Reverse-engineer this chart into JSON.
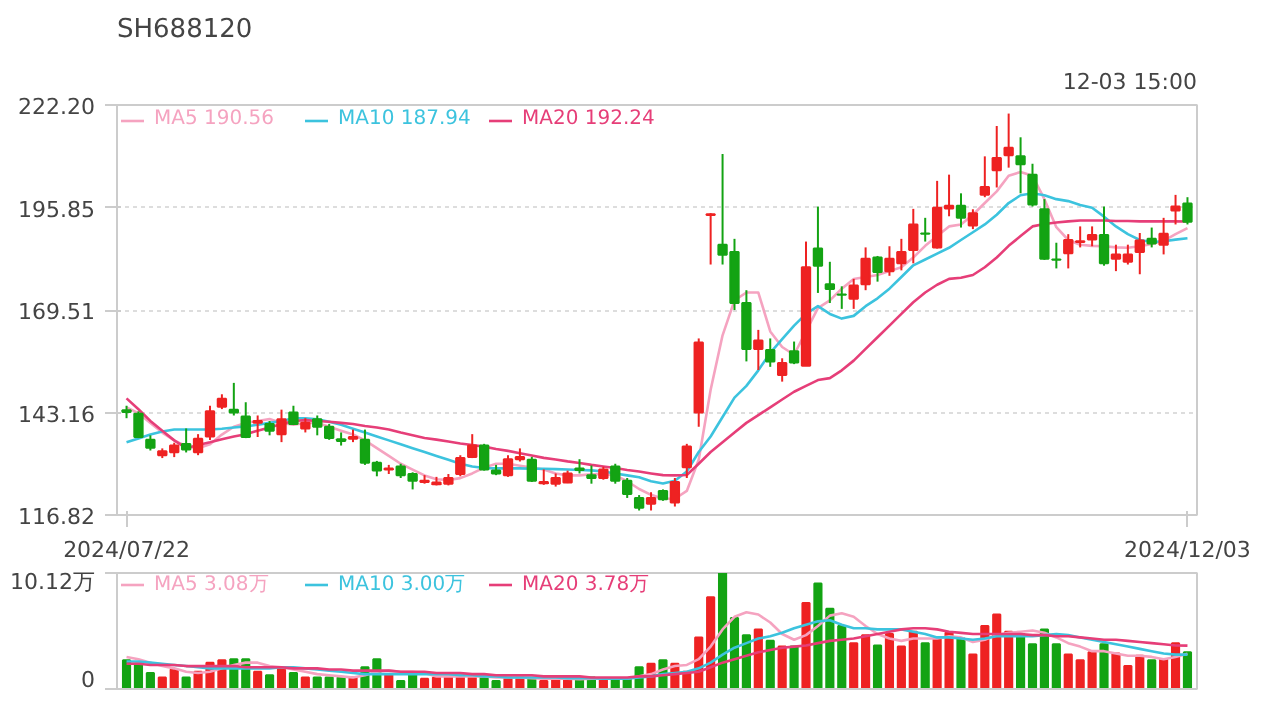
{
  "chart_data": [
    {
      "type": "candlestick",
      "title": "SH688120",
      "annotations": [
        "12-03 15:00"
      ],
      "categories": [
        "2024/07/22",
        null,
        null,
        null,
        null,
        null,
        null,
        null,
        null,
        null,
        null,
        null,
        null,
        null,
        null,
        null,
        null,
        null,
        null,
        null,
        null,
        null,
        null,
        null,
        null,
        null,
        null,
        null,
        null,
        null,
        null,
        null,
        null,
        null,
        null,
        null,
        null,
        null,
        null,
        null,
        null,
        null,
        null,
        null,
        null,
        null,
        null,
        null,
        null,
        null,
        null,
        null,
        null,
        null,
        null,
        null,
        null,
        null,
        null,
        null,
        null,
        null,
        null,
        null,
        null,
        null,
        null,
        null,
        null,
        null,
        null,
        null,
        null,
        null,
        null,
        null,
        null,
        null,
        null,
        null,
        null,
        null,
        null,
        null,
        null,
        null,
        null,
        null,
        null,
        "2024/12/03"
      ],
      "ohlc": [
        [
          143.75,
          144.9,
          141.7,
          143.31
        ],
        [
          142.87,
          143.46,
          136.58,
          136.87
        ],
        [
          136.14,
          137.3,
          133.4,
          134.09
        ],
        [
          132.18,
          133.94,
          131.45,
          133.21
        ],
        [
          132.92,
          135.4,
          131.7,
          134.67
        ],
        [
          135.1,
          139.07,
          132.9,
          133.65
        ],
        [
          132.92,
          137.6,
          132.2,
          136.43
        ],
        [
          137.0,
          144.9,
          136.1,
          143.46
        ],
        [
          144.63,
          147.85,
          144.04,
          146.68
        ],
        [
          143.9,
          150.78,
          142.4,
          143.16
        ],
        [
          142.14,
          145.8,
          136.58,
          136.87
        ],
        [
          140.53,
          142.4,
          136.87,
          140.97
        ],
        [
          140.24,
          140.97,
          137.3,
          138.48
        ],
        [
          137.6,
          143.9,
          135.55,
          141.41
        ],
        [
          143.16,
          144.9,
          139.94,
          140.24
        ],
        [
          139.07,
          141.7,
          138.04,
          140.53
        ],
        [
          141.41,
          142.4,
          137.3,
          139.5
        ],
        [
          139.5,
          140.24,
          136.14,
          136.58
        ],
        [
          136.28,
          138.04,
          134.67,
          135.84
        ],
        [
          136.43,
          138.77,
          135.55,
          136.87
        ],
        [
          136.14,
          138.77,
          129.7,
          130.28
        ],
        [
          130.28,
          130.72,
          126.77,
          128.23
        ],
        [
          128.53,
          129.7,
          127.35,
          128.8
        ],
        [
          129.26,
          129.99,
          126.33,
          127.06
        ],
        [
          127.35,
          127.79,
          123.4,
          125.6
        ],
        [
          125.3,
          127.06,
          124.87,
          125.6
        ],
        [
          124.7,
          126.62,
          124.43,
          125.16
        ],
        [
          124.87,
          127.35,
          124.43,
          126.33
        ],
        [
          127.35,
          132.18,
          126.77,
          131.45
        ],
        [
          131.75,
          137.6,
          131.45,
          134.67
        ],
        [
          134.67,
          135.11,
          128.23,
          128.5
        ],
        [
          128.23,
          129.7,
          127.06,
          127.5
        ],
        [
          127.06,
          132.18,
          126.62,
          131.16
        ],
        [
          131.16,
          133.94,
          130.57,
          131.75
        ],
        [
          131.0,
          131.75,
          125.31,
          125.6
        ],
        [
          125.0,
          128.53,
          124.57,
          125.3
        ],
        [
          124.87,
          127.5,
          124.13,
          126.33
        ],
        [
          125.16,
          128.23,
          125.01,
          127.5
        ],
        [
          128.8,
          131.16,
          127.5,
          128.4
        ],
        [
          127.06,
          129.55,
          124.87,
          126.33
        ],
        [
          126.33,
          129.26,
          125.89,
          128.53
        ],
        [
          129.26,
          129.99,
          124.87,
          125.6
        ],
        [
          125.6,
          126.33,
          121.2,
          122.23
        ],
        [
          121.2,
          121.94,
          117.98,
          118.7
        ],
        [
          119.74,
          122.67,
          117.98,
          121.2
        ],
        [
          122.96,
          123.4,
          120.47,
          120.9
        ],
        [
          120.03,
          126.33,
          119.0,
          125.3
        ],
        [
          129.1,
          135.11,
          126.33,
          134.4
        ],
        [
          143.16,
          162.2,
          139.5,
          161.15
        ],
        [
          193.9,
          194.4,
          181.2,
          194.1
        ],
        [
          186.3,
          209.6,
          181.2,
          183.7
        ],
        [
          184.4,
          187.8,
          169.5,
          171.3
        ],
        [
          171.3,
          174.6,
          156.3,
          159.5
        ],
        [
          159.5,
          164.4,
          154.1,
          161.7
        ],
        [
          159.2,
          162.2,
          154.9,
          156.3
        ],
        [
          152.8,
          157.1,
          151.1,
          155.9
        ],
        [
          158.9,
          161.4,
          155.6,
          156.0
        ],
        [
          155.2,
          187.1,
          155.2,
          180.5
        ],
        [
          185.3,
          196.1,
          173.9,
          180.9
        ],
        [
          176.1,
          181.9,
          171.3,
          174.9
        ],
        [
          173.5,
          175.6,
          169.8,
          173.4
        ],
        [
          172.4,
          177.5,
          169.8,
          175.8
        ],
        [
          176.1,
          185.6,
          174.6,
          182.7
        ],
        [
          183.0,
          183.4,
          176.8,
          179.3
        ],
        [
          179.5,
          185.9,
          178.3,
          182.7
        ],
        [
          181.5,
          187.8,
          179.7,
          184.4
        ],
        [
          184.9,
          195.5,
          181.5,
          191.5
        ],
        [
          189.2,
          193.2,
          187.1,
          189.1
        ],
        [
          185.6,
          202.7,
          185.3,
          195.8
        ],
        [
          195.6,
          204.3,
          193.6,
          196.3
        ],
        [
          196.3,
          199.5,
          190.7,
          193.2
        ],
        [
          191.2,
          195.4,
          190.3,
          194.4
        ],
        [
          199.1,
          209.0,
          198.5,
          201.1
        ],
        [
          205.4,
          216.8,
          201.0,
          208.6
        ],
        [
          209.3,
          220.0,
          206.1,
          211.2
        ],
        [
          209.0,
          213.9,
          199.5,
          207.0
        ],
        [
          204.3,
          207.1,
          196.1,
          196.6
        ],
        [
          195.4,
          198.0,
          182.4,
          182.7
        ],
        [
          182.5,
          186.8,
          180.2,
          182.4
        ],
        [
          184.1,
          189.0,
          180.2,
          187.5
        ],
        [
          187.0,
          191.0,
          185.6,
          187.2
        ],
        [
          187.6,
          191.0,
          185.9,
          188.8
        ],
        [
          188.8,
          196.1,
          180.9,
          181.5
        ],
        [
          182.7,
          186.3,
          179.5,
          183.8
        ],
        [
          181.9,
          186.3,
          181.2,
          183.8
        ],
        [
          184.4,
          189.3,
          178.7,
          187.4
        ],
        [
          187.8,
          190.7,
          185.6,
          186.6
        ],
        [
          186.3,
          193.2,
          183.8,
          189.1
        ],
        [
          195.1,
          199.1,
          191.5,
          196.1
        ],
        [
          196.9,
          198.5,
          191.5,
          192.2
        ]
      ],
      "colors": [
        "#13a313",
        "#13a313",
        "#13a313",
        "#ee2222",
        "#ee2222",
        "#13a313",
        "#ee2222",
        "#ee2222",
        "#ee2222",
        "#13a313",
        "#13a313",
        "#ee2222",
        "#13a313",
        "#ee2222",
        "#13a313",
        "#ee2222",
        "#13a313",
        "#13a313",
        "#13a313",
        "#ee2222",
        "#13a313",
        "#13a313",
        "#ee2222",
        "#13a313",
        "#13a313",
        "#ee2222",
        "#ee2222",
        "#ee2222",
        "#ee2222",
        "#ee2222",
        "#13a313",
        "#13a313",
        "#ee2222",
        "#ee2222",
        "#13a313",
        "#ee2222",
        "#ee2222",
        "#ee2222",
        "#13a313",
        "#13a313",
        "#ee2222",
        "#13a313",
        "#13a313",
        "#13a313",
        "#ee2222",
        "#13a313",
        "#ee2222",
        "#ee2222",
        "#ee2222",
        "#ee2222",
        "#13a313",
        "#13a313",
        "#13a313",
        "#ee2222",
        "#13a313",
        "#ee2222",
        "#13a313",
        "#ee2222",
        "#13a313",
        "#13a313",
        "#13a313",
        "#ee2222",
        "#ee2222",
        "#13a313",
        "#ee2222",
        "#ee2222",
        "#ee2222",
        "#13a313",
        "#ee2222",
        "#ee2222",
        "#13a313",
        "#ee2222",
        "#ee2222",
        "#ee2222",
        "#ee2222",
        "#13a313",
        "#13a313",
        "#13a313",
        "#13a313",
        "#ee2222",
        "#ee2222",
        "#ee2222",
        "#13a313",
        "#ee2222",
        "#ee2222",
        "#ee2222",
        "#13a313",
        "#ee2222",
        "#ee2222",
        "#13a313"
      ],
      "ylim": [
        116.82,
        222.2
      ],
      "yticks": [
        116.82,
        143.16,
        169.51,
        195.85,
        {
          "value": 222.2,
          "label": "222.20"
        }
      ],
      "grid": "y",
      "legend": "top left",
      "series": [
        {
          "type": "line",
          "name": "MA5 190.56",
          "color": "#f5a3c0",
          "values": [
            144.5,
            143,
            140.5,
            138,
            136,
            134.5,
            134,
            135,
            137.5,
            139.5,
            140.5,
            141,
            141.5,
            140.5,
            140,
            140.5,
            140.5,
            139.5,
            138.5,
            137.5,
            136,
            134,
            132,
            130,
            128.5,
            127,
            126,
            125.8,
            126.3,
            127.5,
            129,
            130,
            130,
            129.5,
            129,
            128.5,
            127.5,
            127,
            127,
            127.3,
            127.3,
            127,
            125.5,
            123.5,
            122,
            121,
            121,
            123,
            131,
            149,
            163,
            172,
            174,
            174,
            164,
            160,
            158,
            164,
            170,
            172,
            175,
            177.5,
            178,
            178.5,
            179.5,
            180.5,
            183,
            186,
            188.5,
            191,
            191.5,
            194,
            197,
            200,
            204,
            205,
            204,
            198,
            190.8,
            187.5,
            186.3,
            186,
            185.9,
            185.6,
            185.5,
            185.9,
            186.5,
            187.3,
            189,
            190.56
          ]
        },
        {
          "type": "line",
          "name": "MA10 187.94",
          "color": "#3cc3de",
          "values": [
            135.5,
            136.5,
            137.5,
            138.3,
            138.8,
            138.8,
            138.8,
            138.8,
            139,
            139.3,
            139.6,
            140,
            140.5,
            141,
            141.7,
            141.7,
            141.4,
            140.8,
            140,
            139,
            138,
            137,
            136,
            135,
            134,
            133,
            132,
            131,
            130,
            129.3,
            128.9,
            128.8,
            128.8,
            128.8,
            128.7,
            128.7,
            128.6,
            128.5,
            128.4,
            128.3,
            128,
            127.5,
            127,
            126.5,
            125.5,
            124.9,
            125.6,
            128,
            133,
            137,
            142,
            147,
            150,
            154,
            158.5,
            162,
            165.5,
            168.5,
            170.5,
            168.5,
            167.3,
            168,
            170.5,
            172.5,
            175,
            178,
            181,
            182.5,
            184,
            185.5,
            187.5,
            189.5,
            191.5,
            194,
            197,
            199,
            199.5,
            199,
            198,
            197.5,
            196.5,
            195.8,
            193.5,
            191,
            189,
            187.5,
            187,
            187.2,
            187.6,
            187.94
          ]
        },
        {
          "type": "line",
          "name": "MA20 192.24",
          "color": "#e63e78",
          "values": [
            146.8,
            144,
            141,
            138.5,
            136,
            134,
            134.8,
            135.5,
            136.3,
            137,
            137.6,
            138.5,
            139.3,
            140.2,
            141,
            141.2,
            141,
            140.8,
            140.5,
            140.2,
            139.7,
            139.3,
            138.8,
            138,
            137.3,
            136.6,
            136.2,
            135.7,
            135.2,
            134.8,
            134.4,
            133.8,
            133.3,
            132.7,
            132.1,
            131.5,
            131.1,
            130.6,
            130.2,
            129.7,
            129.3,
            128.9,
            128.4,
            128,
            127.5,
            127.06,
            127,
            127.1,
            130,
            133,
            135.5,
            138,
            140.5,
            142.5,
            144.5,
            146.5,
            148.5,
            150,
            151.5,
            152,
            154,
            156.5,
            159.5,
            162.5,
            165.5,
            168.5,
            171.5,
            174,
            176,
            177.5,
            177.8,
            178.5,
            180.5,
            183,
            186,
            188.5,
            191,
            191.6,
            192,
            192.3,
            192.5,
            192.5,
            192.5,
            192.4,
            192.4,
            192.3,
            192.3,
            192.3,
            192.3,
            192.24
          ]
        }
      ]
    },
    {
      "type": "bar",
      "categories": [
        null,
        null,
        null,
        null,
        null,
        null,
        null,
        null,
        null,
        null,
        null,
        null,
        null,
        null,
        null,
        null,
        null,
        null,
        null,
        null,
        null,
        null,
        null,
        null,
        null,
        null,
        null,
        null,
        null,
        null,
        null,
        null,
        null,
        null,
        null,
        null,
        null,
        null,
        null,
        null,
        null,
        null,
        null,
        null,
        null,
        null,
        null,
        null,
        null,
        null,
        null,
        null,
        null,
        null,
        null,
        null,
        null,
        null,
        null,
        null,
        null,
        null,
        null,
        null,
        null,
        null,
        null,
        null,
        null,
        null,
        null,
        null,
        null,
        null,
        null,
        null,
        null,
        null,
        null,
        null,
        null,
        null,
        null,
        null,
        null,
        null,
        null,
        null,
        null,
        null
      ],
      "ylim": [
        0,
        10.12
      ],
      "yticks": [
        0,
        {
          "value": 10.12,
          "label": "10.12万"
        }
      ],
      "legend": "top left",
      "series": [
        {
          "type": "bar",
          "colors": [
            "#13a313",
            "#13a313",
            "#13a313",
            "#ee2222",
            "#ee2222",
            "#13a313",
            "#ee2222",
            "#ee2222",
            "#ee2222",
            "#13a313",
            "#13a313",
            "#ee2222",
            "#13a313",
            "#ee2222",
            "#13a313",
            "#ee2222",
            "#13a313",
            "#13a313",
            "#13a313",
            "#ee2222",
            "#13a313",
            "#13a313",
            "#ee2222",
            "#13a313",
            "#13a313",
            "#ee2222",
            "#ee2222",
            "#ee2222",
            "#ee2222",
            "#ee2222",
            "#13a313",
            "#13a313",
            "#ee2222",
            "#ee2222",
            "#13a313",
            "#ee2222",
            "#ee2222",
            "#ee2222",
            "#13a313",
            "#13a313",
            "#ee2222",
            "#13a313",
            "#13a313",
            "#13a313",
            "#ee2222",
            "#13a313",
            "#ee2222",
            "#ee2222",
            "#ee2222",
            "#ee2222",
            "#13a313",
            "#13a313",
            "#13a313",
            "#ee2222",
            "#13a313",
            "#ee2222",
            "#13a313",
            "#ee2222",
            "#13a313",
            "#13a313",
            "#13a313",
            "#ee2222",
            "#ee2222",
            "#13a313",
            "#ee2222",
            "#ee2222",
            "#ee2222",
            "#13a313",
            "#ee2222",
            "#ee2222",
            "#13a313",
            "#ee2222",
            "#ee2222",
            "#ee2222",
            "#ee2222",
            "#13a313",
            "#13a313",
            "#13a313",
            "#13a313",
            "#ee2222",
            "#ee2222",
            "#ee2222",
            "#13a313",
            "#ee2222",
            "#ee2222",
            "#ee2222",
            "#13a313",
            "#ee2222",
            "#ee2222",
            "#13a313"
          ],
          "values": [
            2.5,
            2.2,
            1.4,
            1.0,
            1.7,
            1.0,
            1.5,
            2.3,
            2.5,
            2.6,
            2.6,
            1.5,
            1.2,
            1.8,
            1.4,
            1.0,
            1.0,
            1.0,
            1.0,
            1.0,
            1.9,
            2.6,
            1.3,
            0.7,
            1.3,
            0.9,
            1.0,
            1.1,
            1.2,
            1.1,
            1.1,
            0.7,
            1.0,
            1.0,
            0.9,
            0.7,
            0.9,
            0.9,
            0.9,
            1.0,
            0.9,
            0.9,
            0.9,
            1.9,
            2.2,
            2.5,
            2.2,
            1.5,
            4.5,
            8.0,
            10.12,
            6.2,
            4.7,
            5.2,
            4.2,
            3.7,
            3.7,
            7.5,
            9.2,
            7.0,
            5.5,
            4.0,
            4.7,
            3.8,
            4.8,
            3.7,
            5.0,
            4.0,
            4.4,
            4.9,
            4.4,
            3.0,
            5.5,
            6.5,
            5.0,
            4.8,
            3.9,
            5.2,
            3.9,
            3.0,
            2.5,
            3.2,
            3.9,
            3.1,
            2.0,
            2.9,
            2.5,
            2.6,
            4.0,
            3.2
          ]
        },
        {
          "type": "line",
          "name": "MA5 3.08万",
          "color": "#f5a3c0",
          "values": [
            2.8,
            2.6,
            2.3,
            2.0,
            1.8,
            1.5,
            1.4,
            1.5,
            1.8,
            2.1,
            2.3,
            2.3,
            2.0,
            1.9,
            1.7,
            1.5,
            1.3,
            1.2,
            1.1,
            1.0,
            1.2,
            1.5,
            1.6,
            1.5,
            1.5,
            1.4,
            1.1,
            1.1,
            1.1,
            1.1,
            1.1,
            1.0,
            1.0,
            1.0,
            0.95,
            0.9,
            0.9,
            0.9,
            0.85,
            0.9,
            0.9,
            0.9,
            0.9,
            1.1,
            1.3,
            1.7,
            2.0,
            2.1,
            2.6,
            3.7,
            5.2,
            6.3,
            6.7,
            6.5,
            5.8,
            4.8,
            4.3,
            4.7,
            5.5,
            6.4,
            6.6,
            6.3,
            5.5,
            4.8,
            4.4,
            4.2,
            4.4,
            4.4,
            4.4,
            4.6,
            4.5,
            4.1,
            4.3,
            4.7,
            4.9,
            5.0,
            5.1,
            4.9,
            4.5,
            4.0,
            3.7,
            3.3,
            3.3,
            3.1,
            2.9,
            2.9,
            2.8,
            2.6,
            2.8,
            3.08
          ]
        },
        {
          "type": "line",
          "name": "MA10 3.00万",
          "color": "#3cc3de",
          "values": [
            2.4,
            2.4,
            2.3,
            2.2,
            2.1,
            2.0,
            1.9,
            1.8,
            1.8,
            1.8,
            1.8,
            1.8,
            1.8,
            1.9,
            1.9,
            1.8,
            1.7,
            1.6,
            1.5,
            1.4,
            1.3,
            1.3,
            1.3,
            1.3,
            1.3,
            1.3,
            1.3,
            1.3,
            1.2,
            1.2,
            1.1,
            1.1,
            1.0,
            1.0,
            1.0,
            1.0,
            1.0,
            0.95,
            0.95,
            0.95,
            0.9,
            0.9,
            0.9,
            1.0,
            1.1,
            1.3,
            1.4,
            1.5,
            1.8,
            2.3,
            3.0,
            3.6,
            4.0,
            4.4,
            4.6,
            4.9,
            5.3,
            5.6,
            5.9,
            6.0,
            5.6,
            5.3,
            5.3,
            5.2,
            5.2,
            5.2,
            5.0,
            4.8,
            4.5,
            4.5,
            4.4,
            4.3,
            4.4,
            4.6,
            4.6,
            4.6,
            4.6,
            4.7,
            4.8,
            4.7,
            4.5,
            4.3,
            4.1,
            3.9,
            3.7,
            3.5,
            3.3,
            3.1,
            3.0,
            3.0
          ]
        },
        {
          "type": "line",
          "name": "MA20 3.78万",
          "color": "#e63e78",
          "values": [
            2.2,
            2.2,
            2.1,
            2.1,
            2.1,
            2.0,
            2.0,
            2.0,
            2.0,
            2.0,
            1.9,
            1.9,
            1.9,
            1.9,
            1.8,
            1.8,
            1.8,
            1.7,
            1.7,
            1.6,
            1.6,
            1.6,
            1.6,
            1.5,
            1.5,
            1.5,
            1.4,
            1.4,
            1.4,
            1.3,
            1.3,
            1.2,
            1.2,
            1.2,
            1.2,
            1.1,
            1.1,
            1.1,
            1.1,
            1.0,
            1.0,
            1.0,
            1.0,
            1.1,
            1.1,
            1.2,
            1.3,
            1.4,
            1.5,
            1.9,
            2.3,
            2.6,
            2.9,
            3.2,
            3.4,
            3.6,
            3.7,
            3.8,
            4.0,
            4.2,
            4.3,
            4.4,
            4.6,
            4.8,
            5.0,
            5.2,
            5.3,
            5.3,
            5.2,
            5.0,
            4.9,
            4.8,
            4.8,
            4.8,
            4.8,
            4.8,
            4.7,
            4.7,
            4.6,
            4.6,
            4.5,
            4.4,
            4.3,
            4.3,
            4.2,
            4.1,
            4.0,
            3.9,
            3.8,
            3.78
          ]
        }
      ]
    }
  ]
}
